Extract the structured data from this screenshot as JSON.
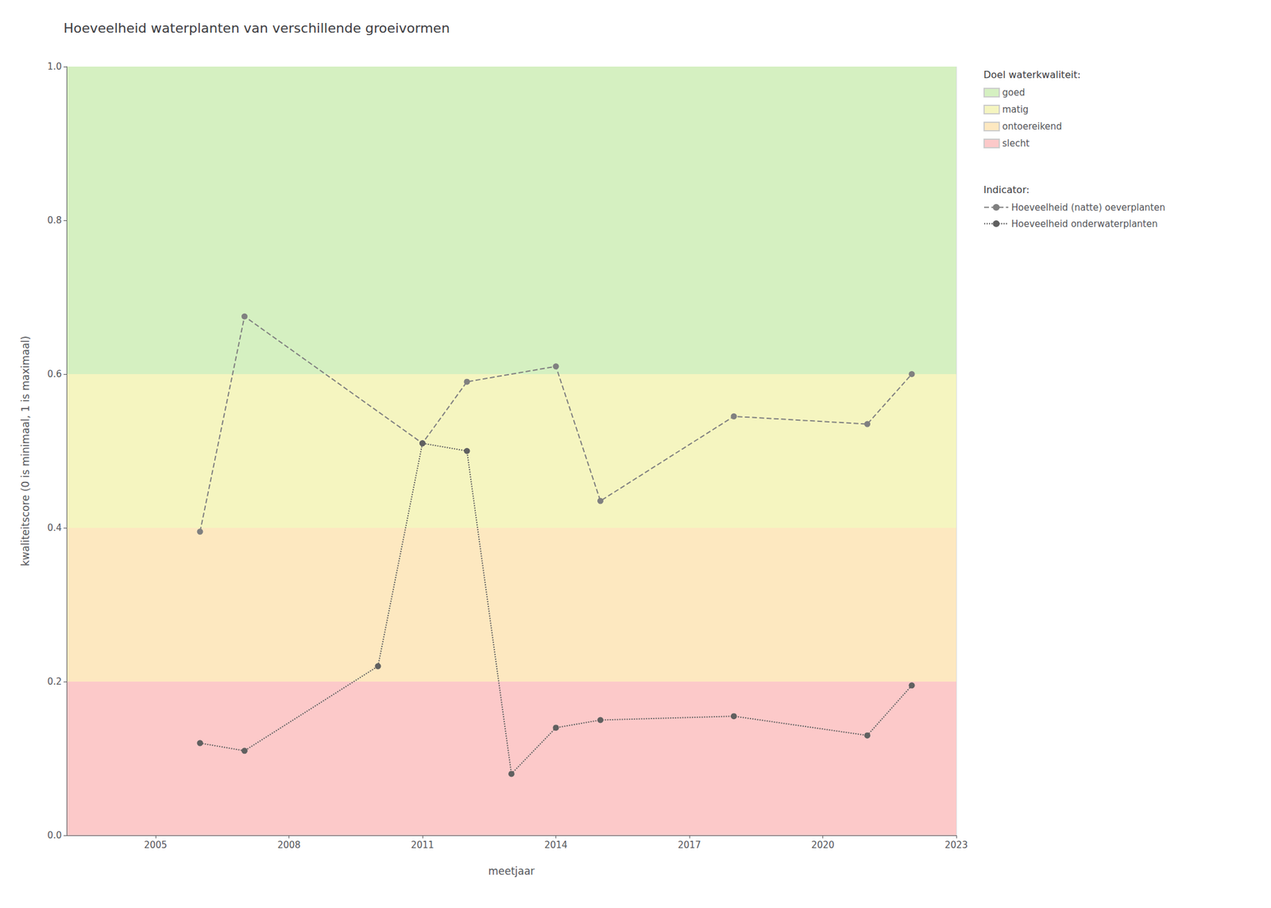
{
  "chart_data": {
    "type": "line",
    "title": "Hoeveelheid waterplanten van verschillende groeivormen",
    "x_label": "meetjaar",
    "y_label": "kwaliteitscore (0 is minimaal, 1 is maximaal)",
    "xlim": [
      2003,
      2023
    ],
    "ylim": [
      0.0,
      1.0
    ],
    "xticks": [
      2005,
      2008,
      2011,
      2014,
      2017,
      2020,
      2023
    ],
    "yticks": [
      {
        "value": 0.0,
        "label": "0.0"
      },
      0.2,
      0.4,
      0.6,
      0.8,
      {
        "value": 1.0,
        "label": "1.0"
      }
    ],
    "grid": true,
    "zone_legend_title": "Doel waterkwaliteit:",
    "series_legend_title": "Indicator:",
    "zones": [
      {
        "name": "goed",
        "range": [
          0.6,
          1.0
        ],
        "color": "#d5f0c1"
      },
      {
        "name": "matig",
        "range": [
          0.4,
          0.6
        ],
        "color": "#f5f5c0"
      },
      {
        "name": "ontoereikend",
        "range": [
          0.2,
          0.4
        ],
        "color": "#fde8c0"
      },
      {
        "name": "slecht",
        "range": [
          0.0,
          0.2
        ],
        "color": "#fcc9c9"
      }
    ],
    "series": [
      {
        "name": "Hoeveelheid (natte) oeverplanten",
        "color": "#808080",
        "line_style": "dashed",
        "marker": "circle",
        "x": [
          2006,
          2007,
          2011,
          2012,
          2014,
          2015,
          2018,
          2021,
          2022
        ],
        "values": [
          0.395,
          0.675,
          0.51,
          0.59,
          0.61,
          0.435,
          0.545,
          0.535,
          0.6
        ]
      },
      {
        "name": "Hoeveelheid onderwaterplanten",
        "color": "#606060",
        "line_style": "dotted",
        "marker": "circle",
        "x": [
          2006,
          2007,
          2010,
          2011,
          2012,
          2013,
          2014,
          2015,
          2018,
          2021,
          2022
        ],
        "values": [
          0.12,
          0.11,
          0.22,
          0.51,
          0.5,
          0.08,
          0.14,
          0.15,
          0.155,
          0.13,
          0.195
        ]
      }
    ]
  }
}
